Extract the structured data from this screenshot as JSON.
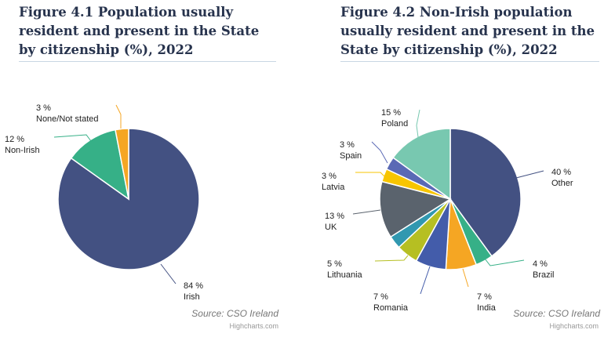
{
  "chart_data": [
    {
      "type": "pie",
      "title": "Figure 4.1 Population usually resident and present in the State by citizenship (%), 2022",
      "unit": "%",
      "slices": [
        {
          "name": "Irish",
          "value": 84,
          "color": "#435182"
        },
        {
          "name": "Non-Irish",
          "value": 12,
          "color": "#36b087"
        },
        {
          "name": "None/Not stated",
          "value": 3,
          "color": "#f5a623"
        }
      ],
      "source": "Source: CSO Ireland",
      "credits": "Highcharts.com"
    },
    {
      "type": "pie",
      "title": "Figure 4.2 Non-Irish population usually resident and present in the State by citizenship (%), 2022",
      "unit": "%",
      "slices": [
        {
          "name": "Other",
          "value": 40,
          "color": "#435182"
        },
        {
          "name": "Brazil",
          "value": 4,
          "color": "#36b087"
        },
        {
          "name": "India",
          "value": 7,
          "color": "#f5a623"
        },
        {
          "name": "Romania",
          "value": 7,
          "color": "#435caa"
        },
        {
          "name": "Lithuania",
          "value": 5,
          "color": "#b6bf22"
        },
        {
          "name": "",
          "value": 3,
          "color": "#3198b0"
        },
        {
          "name": "UK",
          "value": 13,
          "color": "#5a636d"
        },
        {
          "name": "Latvia",
          "value": 3,
          "color": "#f7c500"
        },
        {
          "name": "Spain",
          "value": 3,
          "color": "#5a69b5"
        },
        {
          "name": "Poland",
          "value": 15,
          "color": "#78c8b0"
        }
      ],
      "source": "Source: CSO Ireland",
      "credits": "Highcharts.com"
    }
  ]
}
